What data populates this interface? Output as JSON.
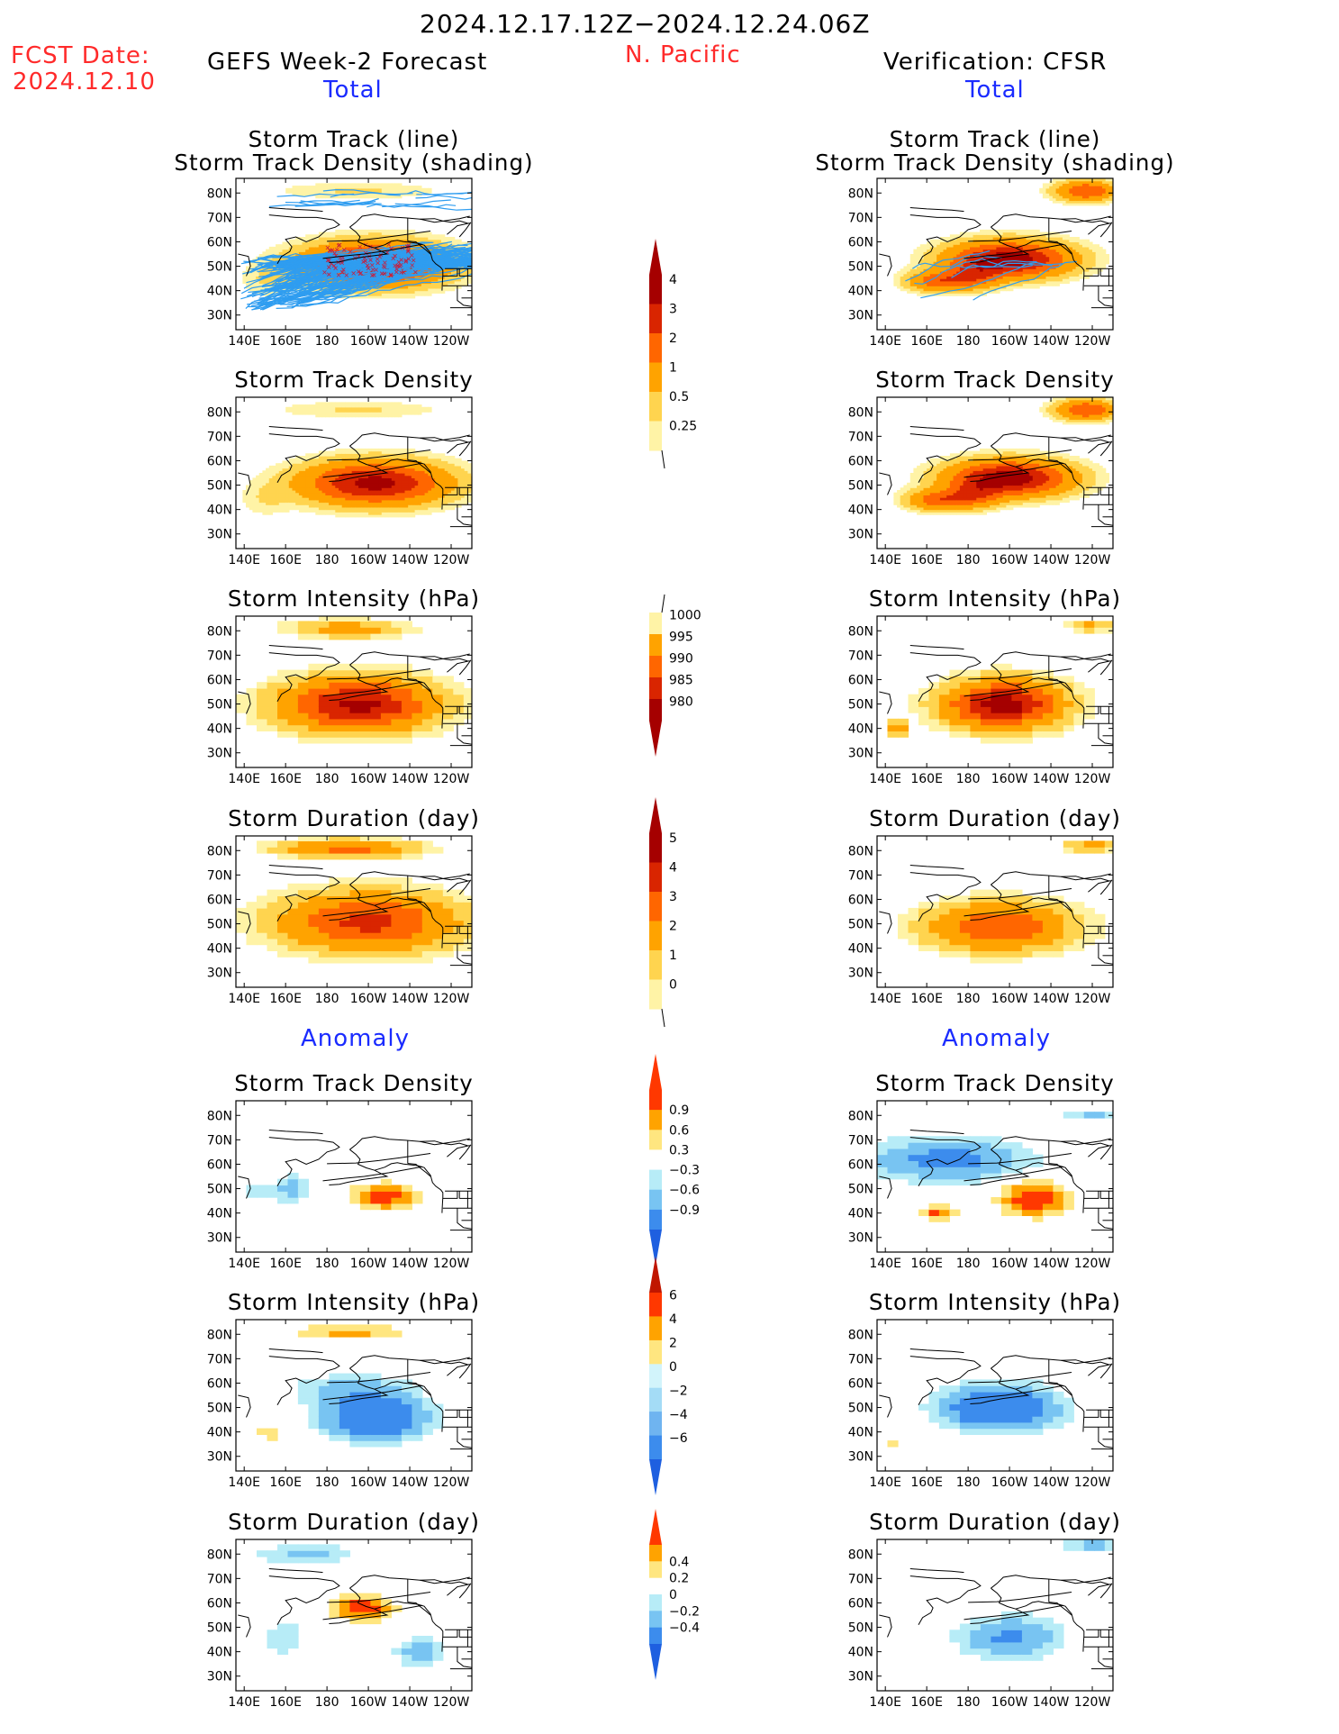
{
  "header": {
    "fcst_label": "FCST Date:",
    "fcst_date": "2024.12.10",
    "period": "2024.12.17.12Z−2024.12.24.06Z",
    "region": "N. Pacific",
    "left_title": "GEFS Week-2 Forecast",
    "left_subtitle": "Total",
    "right_title": "Verification: CFSR",
    "right_subtitle": "Total"
  },
  "sections": {
    "anomaly_left": "Anomaly",
    "anomaly_right": "Anomaly"
  },
  "axes": {
    "lon_ticks": [
      "140E",
      "160E",
      "180",
      "160W",
      "140W",
      "120W"
    ],
    "lat_ticks": [
      "80N",
      "70N",
      "60N",
      "50N",
      "40N",
      "30N"
    ]
  },
  "panels": [
    {
      "id": "track-fcst",
      "title1": "Storm Track (line)",
      "title2": "Storm Track Density (shading)",
      "field": "storm-track-density",
      "lines": true,
      "scale": "density"
    },
    {
      "id": "track-obs",
      "title1": "Storm Track (line)",
      "title2": "Storm Track Density (shading)",
      "field": "storm-track-density",
      "lines": true,
      "scale": "density"
    },
    {
      "id": "density-fcst",
      "title1": "Storm Track Density",
      "title2": "",
      "field": "storm-track-density",
      "scale": "density"
    },
    {
      "id": "density-obs",
      "title1": "Storm Track Density",
      "title2": "",
      "field": "storm-track-density",
      "scale": "density"
    },
    {
      "id": "intensity-fcst",
      "title1": "Storm Intensity (hPa)",
      "title2": "",
      "field": "storm-intensity",
      "scale": "intensity"
    },
    {
      "id": "intensity-obs",
      "title1": "Storm Intensity (hPa)",
      "title2": "",
      "field": "storm-intensity",
      "scale": "intensity"
    },
    {
      "id": "duration-fcst",
      "title1": "Storm Duration (day)",
      "title2": "",
      "field": "storm-duration",
      "scale": "duration"
    },
    {
      "id": "duration-obs",
      "title1": "Storm Duration (day)",
      "title2": "",
      "field": "storm-duration",
      "scale": "duration"
    },
    {
      "id": "density-anom-fcst",
      "title1": "Storm Track Density",
      "title2": "",
      "field": "storm-track-density-anomaly",
      "scale": "density-anomaly"
    },
    {
      "id": "density-anom-obs",
      "title1": "Storm Track Density",
      "title2": "",
      "field": "storm-track-density-anomaly",
      "scale": "density-anomaly"
    },
    {
      "id": "intensity-anom-fcst",
      "title1": "Storm Intensity (hPa)",
      "title2": "",
      "field": "storm-intensity-anomaly",
      "scale": "intensity-anomaly"
    },
    {
      "id": "intensity-anom-obs",
      "title1": "Storm Intensity (hPa)",
      "title2": "",
      "field": "storm-intensity-anomaly",
      "scale": "intensity-anomaly"
    },
    {
      "id": "duration-anom-fcst",
      "title1": "Storm Duration (day)",
      "title2": "",
      "field": "storm-duration-anomaly",
      "scale": "duration-anomaly"
    },
    {
      "id": "duration-anom-obs",
      "title1": "Storm Duration (day)",
      "title2": "",
      "field": "storm-duration-anomaly",
      "scale": "duration-anomaly"
    }
  ],
  "colorbars": [
    {
      "id": "density",
      "labels": [
        "4",
        "3",
        "2",
        "1",
        "0.5",
        "0.25"
      ],
      "colors": [
        "#a50000",
        "#d92500",
        "#ff6600",
        "#ffa300",
        "#ffd44f",
        "#fff3a6"
      ],
      "top_arrow": "#a50000",
      "bottom_arrow": "none"
    },
    {
      "id": "intensity",
      "labels": [
        "1000",
        "995",
        "990",
        "985",
        "980"
      ],
      "colors": [
        "#fff3a6",
        "#ffa300",
        "#ff6600",
        "#d92500",
        "#a50000"
      ],
      "top_arrow": "none",
      "bottom_arrow": "#a50000"
    },
    {
      "id": "duration",
      "labels": [
        "5",
        "4",
        "3",
        "2",
        "1",
        "0"
      ],
      "colors": [
        "#a50000",
        "#d92500",
        "#ff6600",
        "#ffa300",
        "#ffd44f",
        "#fff3a6"
      ],
      "top_arrow": "#a50000",
      "bottom_arrow": "none"
    },
    {
      "id": "density-anomaly",
      "labels": [
        "0.9",
        "0.6",
        "0.3",
        "−0.3",
        "−0.6",
        "−0.9"
      ],
      "colors": [
        "#ff3800",
        "#ffa300",
        "#ffe680",
        "#ffffff",
        "#b7ecf7",
        "#78c4f2",
        "#3c8ced"
      ],
      "top_arrow": "#ff3800",
      "bottom_arrow": "#1e5fe0"
    },
    {
      "id": "intensity-anomaly",
      "labels": [
        "6",
        "4",
        "2",
        "0",
        "−2",
        "−4",
        "−6"
      ],
      "colors": [
        "#ff3800",
        "#ffa300",
        "#ffe680",
        "#d2f4fb",
        "#a4dcf6",
        "#6fb4f0",
        "#3c8ced"
      ],
      "top_arrow": "#c01600",
      "bottom_arrow": "#1e5fe0"
    },
    {
      "id": "duration-anomaly",
      "labels": [
        "0.4",
        "0.2",
        "0",
        "−0.2",
        "−0.4"
      ],
      "colors": [
        "#ffa300",
        "#ffe680",
        "#ffffff",
        "#b7ecf7",
        "#78c4f2",
        "#3c8ced"
      ],
      "top_arrow": "#ff3800",
      "bottom_arrow": "#1e5fe0"
    }
  ]
}
